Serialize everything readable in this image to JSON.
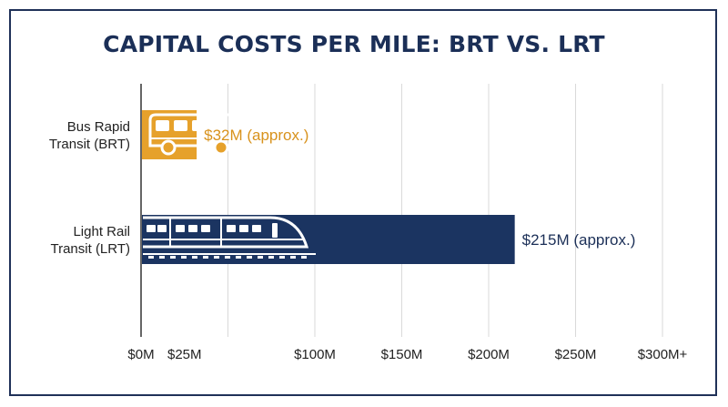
{
  "chart_data": {
    "type": "bar",
    "orientation": "horizontal",
    "title": "CAPITAL COSTS PER MILE: BRT VS. LRT",
    "xlabel": "",
    "ylabel": "",
    "xlim": [
      0,
      300
    ],
    "grid": true,
    "categories": [
      {
        "line1": "Bus Rapid",
        "line2": "Transit (BRT)"
      },
      {
        "line1": "Light Rail",
        "line2": "Transit (LRT)"
      }
    ],
    "values": [
      32,
      215
    ],
    "data_labels": [
      "$32M (approx.)",
      "$215M (approx.)"
    ],
    "ticks": [
      {
        "value": 0,
        "label": "$0M"
      },
      {
        "value": 25,
        "label": "$25M"
      },
      {
        "value": 100,
        "label": "$100M"
      },
      {
        "value": 150,
        "label": "$150M"
      },
      {
        "value": 200,
        "label": "$200M"
      },
      {
        "value": 250,
        "label": "$250M"
      },
      {
        "value": 300,
        "label": "$300M+"
      }
    ],
    "grid_values": [
      50,
      100,
      150,
      200,
      250,
      300
    ],
    "colors": [
      "#e6a12b",
      "#1b3461"
    ],
    "label_colors": [
      "#d8921c",
      "#1b2f57"
    ],
    "bar_icons": [
      "bus-icon",
      "train-icon"
    ]
  }
}
